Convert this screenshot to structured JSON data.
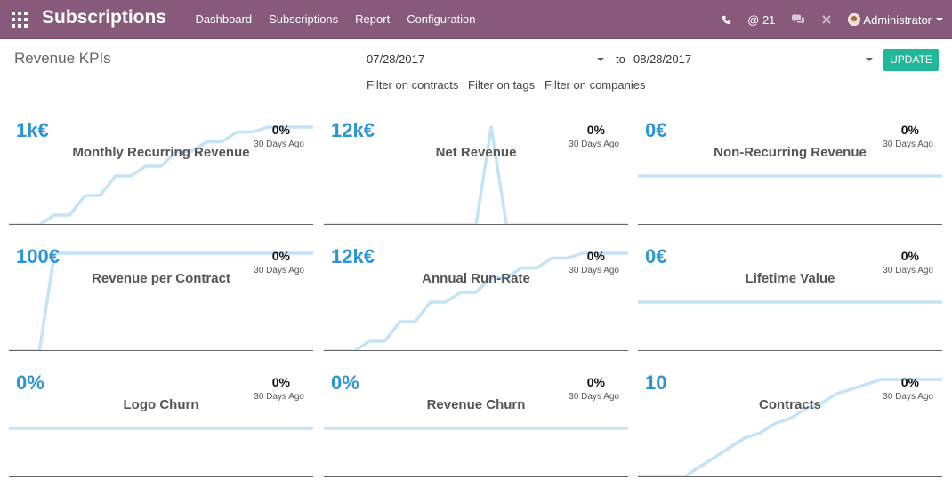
{
  "navbar": {
    "app_title": "Subscriptions",
    "menu": [
      "Dashboard",
      "Subscriptions",
      "Report",
      "Configuration"
    ],
    "mentions_count": "@ 21",
    "user_name": "Administrator",
    "bg_color": "#875a7b",
    "icons": [
      "apps-grid-icon",
      "phone-icon",
      "chat-icon",
      "close-tools-icon",
      "avatar"
    ]
  },
  "controls": {
    "title": "Revenue KPIs",
    "date_from": "07/28/2017",
    "to_label": "to",
    "date_to": "08/28/2017",
    "update_label": "UPDATE",
    "filters": [
      "Filter on contracts",
      "Filter on tags",
      "Filter on companies"
    ]
  },
  "kpis": [
    {
      "value": "1k€",
      "name": "Monthly Recurring Revenue",
      "pct": "0%",
      "ago": "30 Days Ago",
      "trend": [
        0,
        0,
        0,
        0.1,
        0.1,
        0.3,
        0.3,
        0.5,
        0.5,
        0.6,
        0.6,
        0.75,
        0.75,
        0.85,
        0.85,
        0.95,
        0.95,
        1,
        1,
        1,
        1
      ]
    },
    {
      "value": "12k€",
      "name": "Net Revenue",
      "pct": "0%",
      "ago": "30 Days Ago",
      "trend": [
        0,
        0,
        0,
        0,
        0,
        0,
        0,
        0,
        0,
        0,
        0,
        1,
        0,
        0,
        0,
        0,
        0,
        0,
        0,
        0,
        0
      ]
    },
    {
      "value": "0€",
      "name": "Non-Recurring Revenue",
      "pct": "0%",
      "ago": "30 Days Ago",
      "trend": [
        0.5,
        0.5,
        0.5,
        0.5,
        0.5,
        0.5,
        0.5,
        0.5,
        0.5,
        0.5,
        0.5,
        0.5,
        0.5,
        0.5,
        0.5,
        0.5,
        0.5,
        0.5,
        0.5,
        0.5,
        0.5
      ]
    },
    {
      "value": "100€",
      "name": "Revenue per Contract",
      "pct": "0%",
      "ago": "30 Days Ago",
      "trend": [
        0,
        0,
        0,
        1,
        1,
        1,
        1,
        1,
        1,
        1,
        1,
        1,
        1,
        1,
        1,
        1,
        1,
        1,
        1,
        1,
        1
      ]
    },
    {
      "value": "12k€",
      "name": "Annual Run-Rate",
      "pct": "0%",
      "ago": "30 Days Ago",
      "trend": [
        0,
        0,
        0,
        0.1,
        0.1,
        0.3,
        0.3,
        0.5,
        0.5,
        0.6,
        0.6,
        0.75,
        0.75,
        0.85,
        0.85,
        0.95,
        0.95,
        1,
        1,
        1,
        1
      ]
    },
    {
      "value": "0€",
      "name": "Lifetime Value",
      "pct": "0%",
      "ago": "30 Days Ago",
      "trend": [
        0.5,
        0.5,
        0.5,
        0.5,
        0.5,
        0.5,
        0.5,
        0.5,
        0.5,
        0.5,
        0.5,
        0.5,
        0.5,
        0.5,
        0.5,
        0.5,
        0.5,
        0.5,
        0.5,
        0.5,
        0.5
      ]
    },
    {
      "value": "0%",
      "name": "Logo Churn",
      "pct": "0%",
      "ago": "30 Days Ago",
      "trend": [
        0.5,
        0.5,
        0.5,
        0.5,
        0.5,
        0.5,
        0.5,
        0.5,
        0.5,
        0.5,
        0.5,
        0.5,
        0.5,
        0.5,
        0.5,
        0.5,
        0.5,
        0.5,
        0.5,
        0.5,
        0.5
      ]
    },
    {
      "value": "0%",
      "name": "Revenue Churn",
      "pct": "0%",
      "ago": "30 Days Ago",
      "trend": [
        0.5,
        0.5,
        0.5,
        0.5,
        0.5,
        0.5,
        0.5,
        0.5,
        0.5,
        0.5,
        0.5,
        0.5,
        0.5,
        0.5,
        0.5,
        0.5,
        0.5,
        0.5,
        0.5,
        0.5,
        0.5
      ]
    },
    {
      "value": "10",
      "name": "Contracts",
      "pct": "0%",
      "ago": "30 Days Ago",
      "trend": [
        0,
        0,
        0,
        0,
        0.1,
        0.2,
        0.3,
        0.4,
        0.45,
        0.55,
        0.6,
        0.7,
        0.75,
        0.85,
        0.9,
        0.95,
        1,
        1,
        1,
        1,
        1
      ]
    }
  ],
  "colors": {
    "kpi_value": "#2b95d6",
    "sparkline": "#c5e3f6",
    "update_button": "#21b799"
  }
}
